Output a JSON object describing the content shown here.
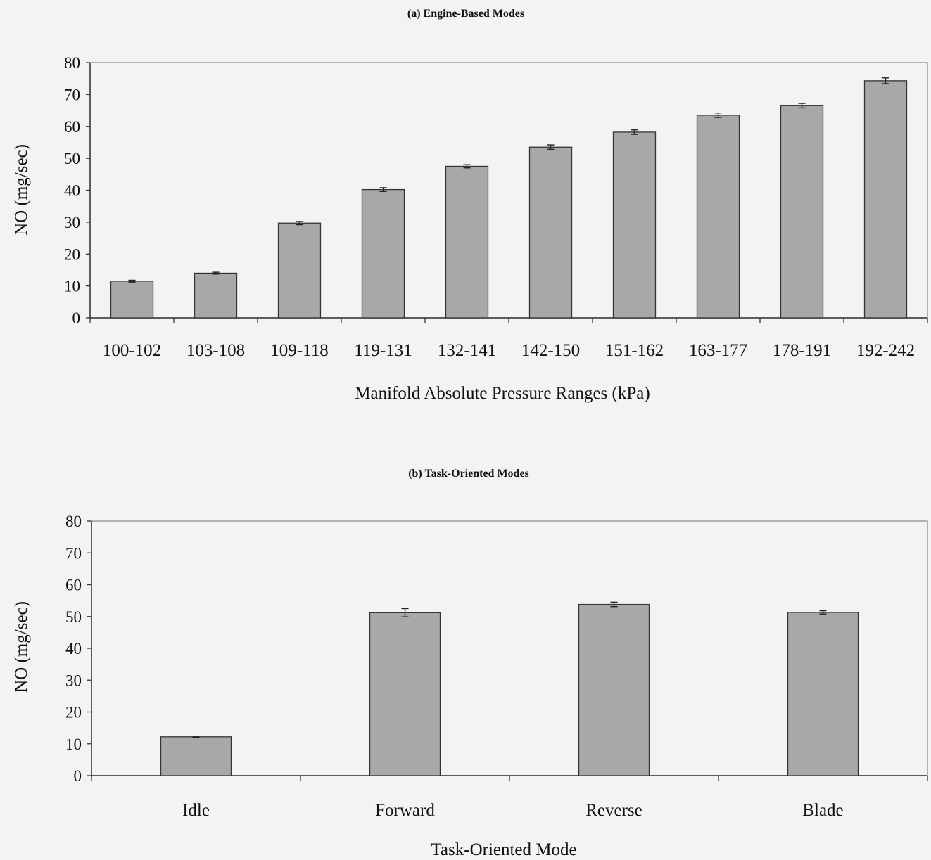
{
  "chart_data": [
    {
      "type": "bar",
      "title": "(a) Engine-Based Modes",
      "xlabel": "Manifold Absolute Pressure Ranges (kPa)",
      "ylabel": "NO (mg/sec)",
      "ylim": [
        0,
        80
      ],
      "yticks": [
        0,
        10,
        20,
        30,
        40,
        50,
        60,
        70,
        80
      ],
      "grid": false,
      "categories": [
        "100-102",
        "103-108",
        "109-118",
        "119-131",
        "132-141",
        "142-150",
        "151-162",
        "163-177",
        "178-191",
        "192-242"
      ],
      "values": [
        11.5,
        14,
        29.7,
        40.2,
        47.5,
        53.5,
        58.2,
        63.5,
        66.5,
        74.3
      ],
      "errors": [
        0.3,
        0.3,
        0.5,
        0.6,
        0.5,
        0.7,
        0.7,
        0.7,
        0.7,
        0.9
      ],
      "bar_color": "#a8a8a6"
    },
    {
      "type": "bar",
      "title": "(b) Task-Oriented Modes",
      "xlabel": "Task-Oriented Mode",
      "ylabel": "NO (mg/sec)",
      "ylim": [
        0,
        80
      ],
      "yticks": [
        0,
        10,
        20,
        30,
        40,
        50,
        60,
        70,
        80
      ],
      "grid": false,
      "categories": [
        "Idle",
        "Forward",
        "Reverse",
        "Blade"
      ],
      "values": [
        12.2,
        51.2,
        53.8,
        51.3
      ],
      "errors": [
        0.2,
        1.3,
        0.7,
        0.5
      ],
      "bar_color": "#a8a8a6"
    }
  ]
}
